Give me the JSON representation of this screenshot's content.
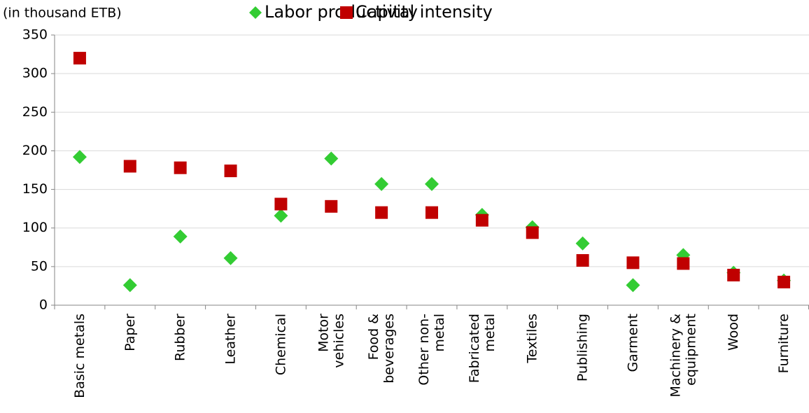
{
  "chart_data": {
    "type": "scatter",
    "y_axis_label": "(in thousand ETB)",
    "categories": [
      "Basic metals",
      "Paper",
      "Rubber",
      "Leather",
      "Chemical",
      "Motor vehicles",
      "Food & beverages",
      "Other non-metal",
      "Fabricated metal",
      "Textiles",
      "Publishing",
      "Garment",
      "Machinery & equipment",
      "Wood",
      "Furniture"
    ],
    "series": [
      {
        "name": "Labor productivity",
        "color": "#33cc33",
        "marker": "diamond",
        "values": [
          192,
          26,
          89,
          61,
          116,
          190,
          157,
          157,
          117,
          101,
          80,
          26,
          65,
          42,
          32
        ]
      },
      {
        "name": "Capital intensity",
        "color": "#c00000",
        "marker": "square",
        "values": [
          320,
          180,
          178,
          174,
          131,
          128,
          120,
          120,
          110,
          94,
          58,
          55,
          54,
          39,
          30
        ]
      }
    ],
    "ylim": [
      0,
      350
    ],
    "yticks": [
      0,
      50,
      100,
      150,
      200,
      250,
      300,
      350
    ],
    "grid": true,
    "legend": "top"
  }
}
